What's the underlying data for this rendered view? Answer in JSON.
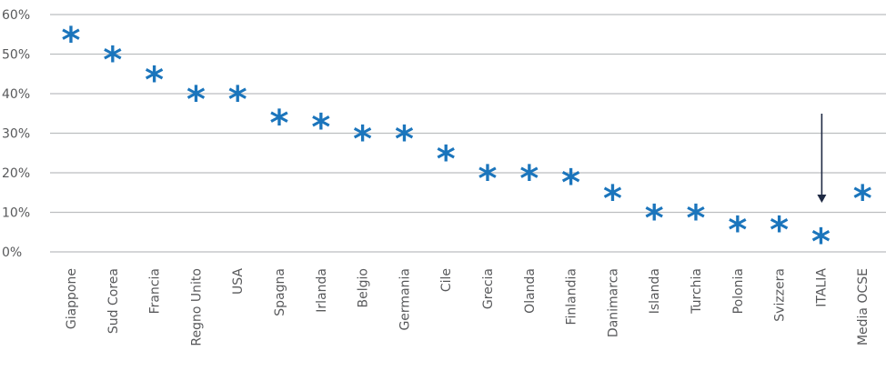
{
  "chart_data": {
    "type": "scatter",
    "marker": "*",
    "marker_color": "#1b75bc",
    "grid_color": "#bcbec0",
    "text_color": "#58595b",
    "arrow_color": "#1f2a44",
    "grid": true,
    "yticks": [
      "0%",
      "10%",
      "20%",
      "30%",
      "40%",
      "50%",
      "60%"
    ],
    "ylim": [
      0,
      60
    ],
    "categories": [
      "Giappone",
      "Sud Corea",
      "Francia",
      "Regno Unito",
      "USA",
      "Spagna",
      "Irlanda",
      "Belgio",
      "Germania",
      "Cile",
      "Grecia",
      "Olanda",
      "Finlandia",
      "Danimarca",
      "Islanda",
      "Turchia",
      "Polonia",
      "Svizzera",
      "ITALIA",
      "Media OCSE"
    ],
    "values": [
      55,
      50,
      45,
      40,
      40,
      34,
      33,
      30,
      30,
      25,
      20,
      20,
      19,
      15,
      10,
      10,
      7,
      7,
      4,
      15
    ],
    "annotation": {
      "category": "ITALIA",
      "type": "arrow"
    }
  }
}
